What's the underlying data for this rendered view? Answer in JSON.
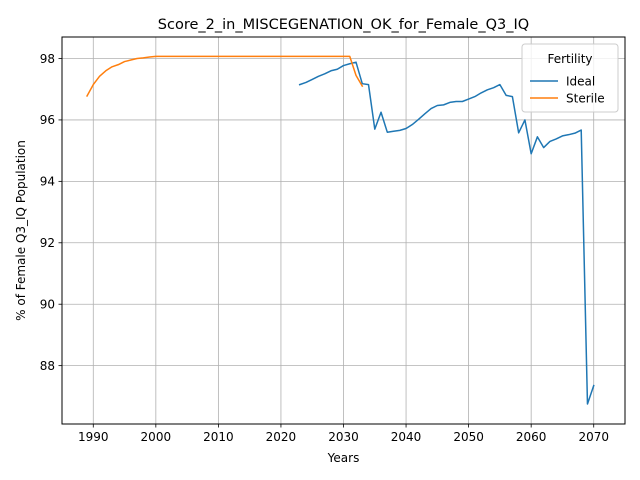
{
  "chart_data": {
    "type": "line",
    "title": "Score_2_in_MISCEGENATION_OK_for_Female_Q3_IQ",
    "xlabel": "Years",
    "ylabel": "% of Female Q3_IQ Population",
    "xlim": [
      1985,
      2075
    ],
    "ylim": [
      86.1,
      98.7
    ],
    "xticks": [
      1990,
      2000,
      2010,
      2020,
      2030,
      2040,
      2050,
      2060,
      2070
    ],
    "yticks": [
      88,
      90,
      92,
      94,
      96,
      98
    ],
    "grid": true,
    "legend": {
      "title": "Fertility",
      "position": "top-right"
    },
    "series": [
      {
        "name": "Ideal",
        "color": "#1f77b4",
        "x": [
          2023,
          2024,
          2025,
          2026,
          2027,
          2028,
          2029,
          2030,
          2031,
          2032,
          2033,
          2034,
          2035,
          2036,
          2037,
          2038,
          2039,
          2040,
          2041,
          2042,
          2043,
          2044,
          2045,
          2046,
          2047,
          2048,
          2049,
          2050,
          2051,
          2052,
          2053,
          2054,
          2055,
          2056,
          2057,
          2058,
          2059,
          2060,
          2061,
          2062,
          2063,
          2064,
          2065,
          2066,
          2067,
          2068,
          2069,
          2070
        ],
        "y": [
          97.15,
          97.22,
          97.32,
          97.42,
          97.5,
          97.6,
          97.65,
          97.77,
          97.83,
          97.88,
          97.18,
          97.15,
          95.7,
          96.25,
          95.6,
          95.63,
          95.66,
          95.72,
          95.85,
          96.02,
          96.2,
          96.37,
          96.47,
          96.49,
          96.57,
          96.6,
          96.6,
          96.68,
          96.76,
          96.88,
          96.98,
          97.05,
          97.15,
          96.8,
          96.76,
          95.58,
          96.0,
          94.9,
          95.45,
          95.1,
          95.3,
          95.38,
          95.48,
          95.52,
          95.57,
          95.67,
          86.75,
          87.35
        ]
      },
      {
        "name": "Sterile",
        "color": "#ff7f0e",
        "x": [
          1989,
          1990,
          1991,
          1992,
          1993,
          1994,
          1995,
          1996,
          1997,
          1998,
          1999,
          2000,
          2001,
          2005,
          2010,
          2015,
          2020,
          2025,
          2030,
          2031,
          2032,
          2033
        ],
        "y": [
          96.78,
          97.15,
          97.42,
          97.6,
          97.73,
          97.8,
          97.9,
          97.95,
          98.0,
          98.02,
          98.05,
          98.07,
          98.07,
          98.07,
          98.07,
          98.07,
          98.07,
          98.07,
          98.07,
          98.07,
          97.45,
          97.1
        ]
      }
    ]
  }
}
